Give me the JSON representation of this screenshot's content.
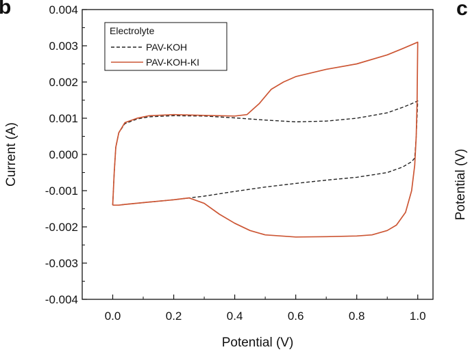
{
  "panels": {
    "left_letter": "b",
    "right_letter": "c",
    "right_axis_label": "Potential (V)"
  },
  "chart_data": {
    "type": "line",
    "title": "",
    "xlabel": "Potential (V)",
    "ylabel": "Current (A)",
    "xlim": [
      -0.1,
      1.05
    ],
    "ylim": [
      -0.004,
      0.004
    ],
    "x_ticks": [
      "0.0",
      "0.2",
      "0.4",
      "0.6",
      "0.8",
      "1.0"
    ],
    "y_ticks": [
      "0.004",
      "0.003",
      "0.002",
      "0.001",
      "0.000",
      "-0.001",
      "-0.002",
      "-0.003",
      "-0.004"
    ],
    "grid": false,
    "legend": {
      "title": "Electrolyte",
      "position": "top-left"
    },
    "series": [
      {
        "name": "PAV-KOH",
        "color": "#222222",
        "dash": true,
        "x": [
          0.0,
          0.005,
          0.01,
          0.02,
          0.04,
          0.08,
          0.12,
          0.2,
          0.3,
          0.4,
          0.5,
          0.6,
          0.7,
          0.8,
          0.9,
          0.95,
          0.98,
          1.0,
          0.995,
          0.99,
          0.98,
          0.95,
          0.9,
          0.8,
          0.7,
          0.6,
          0.5,
          0.4,
          0.3,
          0.2,
          0.1,
          0.04,
          0.02,
          0.0
        ],
        "y": [
          -0.0014,
          -0.0005,
          0.0002,
          0.0006,
          0.00085,
          0.00098,
          0.00104,
          0.00107,
          0.00106,
          0.00101,
          0.00095,
          0.0009,
          0.00092,
          0.001,
          0.00115,
          0.0013,
          0.0014,
          0.00148,
          0.0005,
          -0.0001,
          -0.0002,
          -0.00035,
          -0.0005,
          -0.00063,
          -0.00071,
          -0.0008,
          -0.0009,
          -0.00102,
          -0.00115,
          -0.00125,
          -0.00133,
          -0.00138,
          -0.0014,
          -0.0014
        ]
      },
      {
        "name": "PAV-KOH-KI",
        "color": "#cc5533",
        "dash": false,
        "x": [
          0.0,
          0.005,
          0.01,
          0.02,
          0.04,
          0.08,
          0.12,
          0.2,
          0.3,
          0.4,
          0.44,
          0.48,
          0.52,
          0.56,
          0.6,
          0.7,
          0.8,
          0.9,
          0.95,
          1.0,
          0.998,
          0.995,
          0.99,
          0.98,
          0.96,
          0.93,
          0.9,
          0.85,
          0.8,
          0.7,
          0.6,
          0.5,
          0.45,
          0.4,
          0.35,
          0.3,
          0.25,
          0.2,
          0.1,
          0.04,
          0.02,
          0.0
        ],
        "y": [
          -0.0014,
          -0.0005,
          0.0002,
          0.0006,
          0.00088,
          0.001,
          0.00107,
          0.0011,
          0.00108,
          0.00106,
          0.0011,
          0.0014,
          0.0018,
          0.002,
          0.00215,
          0.00235,
          0.0025,
          0.00275,
          0.00292,
          0.0031,
          0.0015,
          0.0005,
          -0.0003,
          -0.001,
          -0.0016,
          -0.00195,
          -0.0021,
          -0.00222,
          -0.00225,
          -0.00227,
          -0.00228,
          -0.00222,
          -0.0021,
          -0.0019,
          -0.00165,
          -0.00135,
          -0.0012,
          -0.00125,
          -0.00133,
          -0.00138,
          -0.0014,
          -0.0014
        ]
      }
    ]
  }
}
